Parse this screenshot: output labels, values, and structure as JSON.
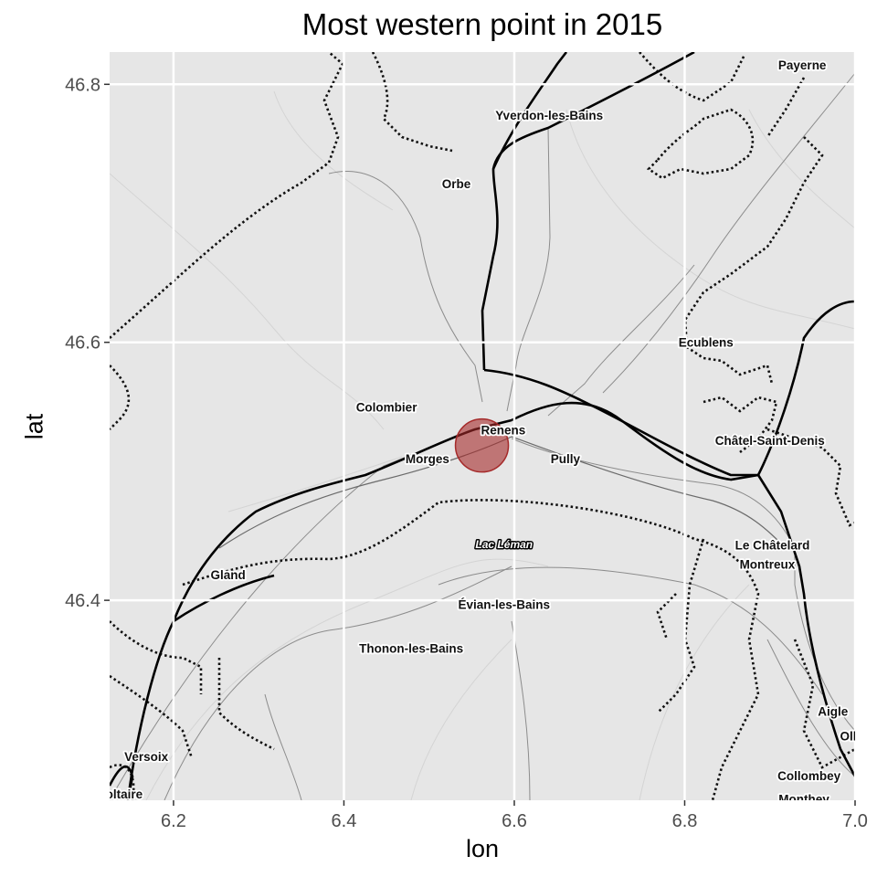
{
  "chart_data": {
    "type": "scatter",
    "title": "Most western point in 2015",
    "xlabel": "lon",
    "ylabel": "lat",
    "xlim": [
      6.125,
      7.0
    ],
    "ylim": [
      46.245,
      46.825
    ],
    "x_ticks": [
      {
        "value": 6.2,
        "label": "6.2"
      },
      {
        "value": 6.4,
        "label": "6.4"
      },
      {
        "value": 6.6,
        "label": "6.6"
      },
      {
        "value": 6.8,
        "label": "6.8"
      },
      {
        "value": 7.0,
        "label": "7.0"
      }
    ],
    "y_ticks": [
      {
        "value": 46.4,
        "label": "46.4"
      },
      {
        "value": 46.6,
        "label": "46.6"
      },
      {
        "value": 46.8,
        "label": "46.8"
      }
    ],
    "grid": true,
    "points": [
      {
        "lon": 6.562,
        "lat": 46.52,
        "color": "#a52a2a"
      }
    ]
  },
  "basemap": {
    "places": [
      {
        "name": "Payerne",
        "lon": 6.938,
        "lat": 46.815
      },
      {
        "name": "Yverdon-les-Bains",
        "lon": 6.641,
        "lat": 46.776
      },
      {
        "name": "Orbe",
        "lon": 6.532,
        "lat": 46.723
      },
      {
        "name": "Ecublens",
        "lon": 6.825,
        "lat": 46.6
      },
      {
        "name": "Colombier",
        "lon": 6.45,
        "lat": 46.55
      },
      {
        "name": "Renens",
        "lon": 6.587,
        "lat": 46.532
      },
      {
        "name": "Châtel-Saint-Denis",
        "lon": 6.9,
        "lat": 46.524
      },
      {
        "name": "Morges",
        "lon": 6.498,
        "lat": 46.51
      },
      {
        "name": "Pully",
        "lon": 6.66,
        "lat": 46.51
      },
      {
        "name": "Lac Léman",
        "lon": 6.588,
        "lat": 46.444,
        "water": true
      },
      {
        "name": "Le Châtelard",
        "lon": 6.903,
        "lat": 46.443
      },
      {
        "name": "Montreux",
        "lon": 6.897,
        "lat": 46.428
      },
      {
        "name": "Gland",
        "lon": 6.264,
        "lat": 46.42
      },
      {
        "name": "Évian-les-Bains",
        "lon": 6.588,
        "lat": 46.397
      },
      {
        "name": "Thonon-les-Bains",
        "lon": 6.479,
        "lat": 46.363
      },
      {
        "name": "Aigle",
        "lon": 6.974,
        "lat": 46.314
      },
      {
        "name": "Olle",
        "lon": 6.996,
        "lat": 46.295
      },
      {
        "name": "Versoix",
        "lon": 6.168,
        "lat": 46.279
      },
      {
        "name": "Collombey",
        "lon": 6.946,
        "lat": 46.264
      },
      {
        "name": "Monthey",
        "lon": 6.94,
        "lat": 46.246
      },
      {
        "name": "oltaire",
        "lon": 6.142,
        "lat": 46.25
      }
    ]
  }
}
